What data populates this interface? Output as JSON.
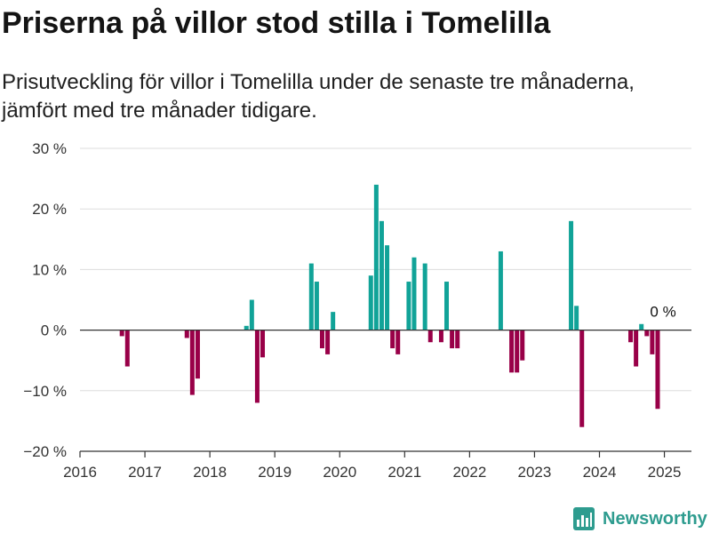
{
  "chart_data": {
    "type": "bar",
    "title": "Priserna på villor stod stilla i Tomelilla",
    "subtitle": "Prisutveckling för villor i Tomelilla under de senaste tre månaderna, jämfört med tre månader tidigare.",
    "x": [
      "2016-09",
      "2016-10",
      "2017-09",
      "2017-10",
      "2017-11",
      "2018-08",
      "2018-09",
      "2018-10",
      "2018-11",
      "2019-08",
      "2019-09",
      "2019-10",
      "2019-11",
      "2019-12",
      "2020-07",
      "2020-08",
      "2020-09",
      "2020-10",
      "2020-11",
      "2020-12",
      "2021-02",
      "2021-03",
      "2021-05",
      "2021-06",
      "2021-08",
      "2021-09",
      "2021-10",
      "2021-11",
      "2022-07",
      "2022-09",
      "2022-10",
      "2022-11",
      "2023-08",
      "2023-09",
      "2023-10",
      "2024-07",
      "2024-08",
      "2024-09",
      "2024-10",
      "2024-11",
      "2024-12",
      "2025-01"
    ],
    "values": [
      -1,
      -6,
      -1.3,
      -10.7,
      -8,
      0.7,
      5,
      -12,
      -4.5,
      11,
      8,
      -3,
      -4,
      3,
      9,
      24,
      18,
      14,
      -3,
      -4,
      8,
      12,
      11,
      -2,
      -2,
      8,
      -3,
      -3,
      13,
      -7,
      -7,
      -5,
      18,
      4,
      -16,
      -2,
      -6,
      1,
      -1,
      -4,
      -13,
      0
    ],
    "ylim": [
      -20,
      30
    ],
    "xlim": [
      "2016-01",
      "2025-06"
    ],
    "yticks": [
      {
        "value": 30,
        "label": "30 %"
      },
      {
        "value": 20,
        "label": "20 %"
      },
      {
        "value": 10,
        "label": "10 %"
      },
      {
        "value": 0,
        "label": "0 %"
      },
      {
        "value": -10,
        "label": "−10 %"
      },
      {
        "value": -20,
        "label": "−20 %"
      }
    ],
    "xticks": [
      "2016",
      "2017",
      "2018",
      "2019",
      "2020",
      "2021",
      "2022",
      "2023",
      "2024",
      "2025"
    ],
    "annotations": [
      {
        "x": "2025-01",
        "value": 0,
        "label": "0 %"
      }
    ],
    "grid": true,
    "colors": {
      "positive": "#11a398",
      "negative": "#990048",
      "zero_line": "#333333",
      "axis": "#333333",
      "grid": "#dddddd",
      "tick_text": "#333333",
      "annotation_text": "#111111"
    }
  },
  "footer": {
    "brand_name": "Newsworthy",
    "brand_icon": "newsworthy-logo-icon",
    "brand_color": "#2e9c8f"
  }
}
